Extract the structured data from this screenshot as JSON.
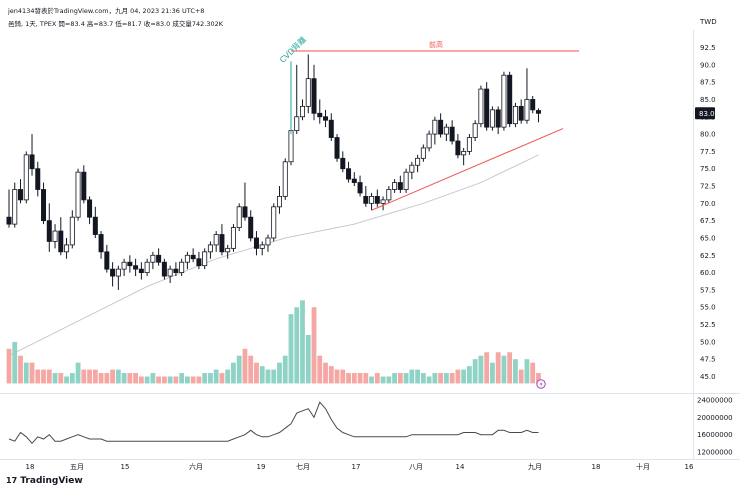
{
  "header": {
    "published": "jen4134發表於TradingView.com，九月 04, 2023 21:36 UTC+8",
    "ohlc": "邑錡, 1天, TPEX  開=83.4  高=83.7  低=81.7  收=83.0  成交量742.302K",
    "currency": "TWD"
  },
  "annotations": {
    "pattern_label": "CVD背離",
    "prev_high_label": "前高"
  },
  "last_price_label": "83.0",
  "footer": {
    "brand": "TradingView"
  },
  "chart_data": {
    "type": "candlestick",
    "price_axis": {
      "ticks": [
        "92.5",
        "90.0",
        "87.5",
        "85.0",
        "82.5",
        "80.0",
        "77.5",
        "75.0",
        "72.5",
        "70.0",
        "67.5",
        "65.0",
        "62.5",
        "60.0",
        "57.5",
        "55.0",
        "52.5",
        "50.0",
        "47.5",
        "45.0"
      ]
    },
    "cvd_axis": {
      "ticks": [
        "24000000",
        "20000000",
        "16000000",
        "12000000"
      ]
    },
    "time_axis": {
      "ticks": [
        "18",
        "五月",
        "15",
        "六月",
        "19",
        "七月",
        "17",
        "八月",
        "14",
        "九月",
        "18",
        "十月",
        "16"
      ]
    },
    "prev_high_level": 92,
    "candles": [
      {
        "o": 68.0,
        "h": 72.0,
        "l": 66.5,
        "c": 67.0
      },
      {
        "o": 67.0,
        "h": 73.0,
        "l": 66.5,
        "c": 72.0
      },
      {
        "o": 72.0,
        "h": 73.5,
        "l": 70.0,
        "c": 70.5
      },
      {
        "o": 70.5,
        "h": 77.5,
        "l": 70.0,
        "c": 77.0
      },
      {
        "o": 77.0,
        "h": 80.0,
        "l": 74.0,
        "c": 75.0
      },
      {
        "o": 75.0,
        "h": 76.0,
        "l": 71.0,
        "c": 72.0
      },
      {
        "o": 72.0,
        "h": 73.0,
        "l": 67.0,
        "c": 67.5
      },
      {
        "o": 67.5,
        "h": 70.0,
        "l": 63.0,
        "c": 64.5
      },
      {
        "o": 64.5,
        "h": 67.0,
        "l": 63.5,
        "c": 66.0
      },
      {
        "o": 66.0,
        "h": 68.0,
        "l": 62.5,
        "c": 63.0
      },
      {
        "o": 63.0,
        "h": 65.0,
        "l": 62.0,
        "c": 64.0
      },
      {
        "o": 64.0,
        "h": 69.0,
        "l": 63.5,
        "c": 68.0
      },
      {
        "o": 68.0,
        "h": 75.0,
        "l": 67.5,
        "c": 74.5
      },
      {
        "o": 74.5,
        "h": 75.5,
        "l": 70.0,
        "c": 70.5
      },
      {
        "o": 70.5,
        "h": 71.0,
        "l": 67.0,
        "c": 68.0
      },
      {
        "o": 68.0,
        "h": 69.5,
        "l": 65.0,
        "c": 65.5
      },
      {
        "o": 65.5,
        "h": 66.0,
        "l": 62.0,
        "c": 63.0
      },
      {
        "o": 63.0,
        "h": 64.0,
        "l": 60.0,
        "c": 60.5
      },
      {
        "o": 60.5,
        "h": 61.5,
        "l": 58.0,
        "c": 59.5
      },
      {
        "o": 59.5,
        "h": 61.0,
        "l": 57.5,
        "c": 60.5
      },
      {
        "o": 60.5,
        "h": 62.0,
        "l": 59.5,
        "c": 61.5
      },
      {
        "o": 61.5,
        "h": 62.5,
        "l": 60.0,
        "c": 61.0
      },
      {
        "o": 61.0,
        "h": 62.0,
        "l": 59.5,
        "c": 60.5
      },
      {
        "o": 60.5,
        "h": 61.5,
        "l": 59.0,
        "c": 60.0
      },
      {
        "o": 60.0,
        "h": 62.0,
        "l": 59.5,
        "c": 61.5
      },
      {
        "o": 61.5,
        "h": 63.0,
        "l": 60.5,
        "c": 62.5
      },
      {
        "o": 62.5,
        "h": 63.5,
        "l": 61.0,
        "c": 61.5
      },
      {
        "o": 61.5,
        "h": 62.0,
        "l": 59.0,
        "c": 59.5
      },
      {
        "o": 59.5,
        "h": 61.0,
        "l": 58.5,
        "c": 60.5
      },
      {
        "o": 60.5,
        "h": 61.5,
        "l": 59.5,
        "c": 60.0
      },
      {
        "o": 60.0,
        "h": 62.0,
        "l": 59.5,
        "c": 61.5
      },
      {
        "o": 61.5,
        "h": 63.0,
        "l": 60.5,
        "c": 62.5
      },
      {
        "o": 62.5,
        "h": 63.5,
        "l": 61.5,
        "c": 62.0
      },
      {
        "o": 62.0,
        "h": 63.0,
        "l": 60.5,
        "c": 61.0
      },
      {
        "o": 61.0,
        "h": 63.5,
        "l": 60.5,
        "c": 63.0
      },
      {
        "o": 63.0,
        "h": 64.5,
        "l": 62.0,
        "c": 64.0
      },
      {
        "o": 64.0,
        "h": 66.0,
        "l": 63.0,
        "c": 65.5
      },
      {
        "o": 65.5,
        "h": 67.0,
        "l": 62.5,
        "c": 63.0
      },
      {
        "o": 63.0,
        "h": 64.0,
        "l": 62.0,
        "c": 63.5
      },
      {
        "o": 63.5,
        "h": 67.0,
        "l": 63.0,
        "c": 66.5
      },
      {
        "o": 66.5,
        "h": 70.0,
        "l": 66.0,
        "c": 69.5
      },
      {
        "o": 69.5,
        "h": 73.0,
        "l": 67.5,
        "c": 68.0
      },
      {
        "o": 68.0,
        "h": 69.0,
        "l": 64.5,
        "c": 65.0
      },
      {
        "o": 65.0,
        "h": 66.0,
        "l": 62.5,
        "c": 63.5
      },
      {
        "o": 63.5,
        "h": 64.5,
        "l": 62.5,
        "c": 64.0
      },
      {
        "o": 64.0,
        "h": 65.5,
        "l": 63.0,
        "c": 65.0
      },
      {
        "o": 65.0,
        "h": 70.0,
        "l": 64.5,
        "c": 69.5
      },
      {
        "o": 69.5,
        "h": 72.5,
        "l": 68.5,
        "c": 71.0
      },
      {
        "o": 71.0,
        "h": 76.5,
        "l": 70.5,
        "c": 76.0
      },
      {
        "o": 76.0,
        "h": 81.0,
        "l": 75.5,
        "c": 80.5
      },
      {
        "o": 80.5,
        "h": 90.0,
        "l": 80.0,
        "c": 82.5
      },
      {
        "o": 82.5,
        "h": 85.0,
        "l": 82.0,
        "c": 84.0
      },
      {
        "o": 84.0,
        "h": 91.5,
        "l": 83.0,
        "c": 88.0
      },
      {
        "o": 88.0,
        "h": 90.0,
        "l": 82.0,
        "c": 83.0
      },
      {
        "o": 83.0,
        "h": 85.0,
        "l": 81.5,
        "c": 82.5
      },
      {
        "o": 82.5,
        "h": 83.5,
        "l": 81.0,
        "c": 82.0
      },
      {
        "o": 82.0,
        "h": 83.0,
        "l": 79.0,
        "c": 79.5
      },
      {
        "o": 79.5,
        "h": 80.0,
        "l": 76.0,
        "c": 76.5
      },
      {
        "o": 76.5,
        "h": 77.5,
        "l": 74.5,
        "c": 75.0
      },
      {
        "o": 75.0,
        "h": 76.0,
        "l": 73.0,
        "c": 73.5
      },
      {
        "o": 73.5,
        "h": 74.5,
        "l": 72.5,
        "c": 73.0
      },
      {
        "o": 73.0,
        "h": 74.0,
        "l": 71.0,
        "c": 71.5
      },
      {
        "o": 71.0,
        "h": 72.5,
        "l": 69.5,
        "c": 70.0
      },
      {
        "o": 70.0,
        "h": 71.5,
        "l": 69.0,
        "c": 71.0
      },
      {
        "o": 71.0,
        "h": 72.0,
        "l": 69.5,
        "c": 70.0
      },
      {
        "o": 70.0,
        "h": 71.0,
        "l": 69.0,
        "c": 70.5
      },
      {
        "o": 70.5,
        "h": 72.5,
        "l": 70.0,
        "c": 72.0
      },
      {
        "o": 72.0,
        "h": 73.5,
        "l": 71.5,
        "c": 73.0
      },
      {
        "o": 73.0,
        "h": 74.0,
        "l": 71.5,
        "c": 72.0
      },
      {
        "o": 72.0,
        "h": 75.0,
        "l": 71.5,
        "c": 74.5
      },
      {
        "o": 74.5,
        "h": 76.0,
        "l": 73.5,
        "c": 75.5
      },
      {
        "o": 75.5,
        "h": 77.0,
        "l": 74.5,
        "c": 76.5
      },
      {
        "o": 76.5,
        "h": 78.5,
        "l": 76.0,
        "c": 78.0
      },
      {
        "o": 78.0,
        "h": 80.5,
        "l": 77.5,
        "c": 80.0
      },
      {
        "o": 80.0,
        "h": 82.5,
        "l": 78.5,
        "c": 82.0
      },
      {
        "o": 82.0,
        "h": 83.0,
        "l": 79.5,
        "c": 80.0
      },
      {
        "o": 80.0,
        "h": 81.5,
        "l": 79.0,
        "c": 81.0
      },
      {
        "o": 81.0,
        "h": 82.0,
        "l": 78.5,
        "c": 79.0
      },
      {
        "o": 79.0,
        "h": 80.0,
        "l": 76.5,
        "c": 77.0
      },
      {
        "o": 77.0,
        "h": 78.0,
        "l": 75.5,
        "c": 77.5
      },
      {
        "o": 77.5,
        "h": 80.0,
        "l": 77.0,
        "c": 79.5
      },
      {
        "o": 79.5,
        "h": 82.0,
        "l": 79.0,
        "c": 81.5
      },
      {
        "o": 81.5,
        "h": 87.0,
        "l": 81.0,
        "c": 86.5
      },
      {
        "o": 86.5,
        "h": 87.5,
        "l": 80.5,
        "c": 81.0
      },
      {
        "o": 81.0,
        "h": 84.0,
        "l": 80.5,
        "c": 83.5
      },
      {
        "o": 83.5,
        "h": 84.0,
        "l": 80.0,
        "c": 81.0
      },
      {
        "o": 81.0,
        "h": 89.0,
        "l": 80.5,
        "c": 88.5
      },
      {
        "o": 88.5,
        "h": 89.0,
        "l": 81.0,
        "c": 81.5
      },
      {
        "o": 81.5,
        "h": 84.5,
        "l": 81.0,
        "c": 84.0
      },
      {
        "o": 84.0,
        "h": 85.0,
        "l": 81.5,
        "c": 82.0
      },
      {
        "o": 82.0,
        "h": 89.5,
        "l": 81.5,
        "c": 85.0
      },
      {
        "o": 85.0,
        "h": 85.5,
        "l": 83.0,
        "c": 83.5
      },
      {
        "o": 83.4,
        "h": 83.7,
        "l": 81.7,
        "c": 83.0
      }
    ],
    "moving_average": [
      {
        "i": 0,
        "v": 48
      },
      {
        "i": 12,
        "v": 53
      },
      {
        "i": 24,
        "v": 58
      },
      {
        "i": 36,
        "v": 62
      },
      {
        "i": 48,
        "v": 65
      },
      {
        "i": 60,
        "v": 67
      },
      {
        "i": 72,
        "v": 70
      },
      {
        "i": 82,
        "v": 73
      },
      {
        "i": 92,
        "v": 77
      }
    ],
    "volume_scale": [
      44.0,
      57.5
    ],
    "volumes": [
      49,
      50,
      48,
      47,
      47,
      46,
      46,
      46,
      45.5,
      45.5,
      45,
      45.5,
      47,
      46,
      46,
      46,
      45.5,
      45.5,
      46,
      46,
      45.5,
      45.5,
      45.5,
      45,
      45,
      45.5,
      45,
      45,
      45,
      45,
      45.5,
      45,
      45,
      45,
      45.5,
      45.5,
      46,
      45.5,
      46,
      47,
      48,
      49,
      48,
      47,
      46.5,
      46,
      46,
      47,
      48,
      54,
      55,
      56,
      51,
      55,
      48,
      47,
      46.5,
      46,
      46,
      45.5,
      45.5,
      45.5,
      45.5,
      45,
      45.5,
      45,
      45,
      45.5,
      45.5,
      45.5,
      46,
      46,
      45.5,
      45,
      45.5,
      45.5,
      45.5,
      45.5,
      46,
      46,
      46.5,
      47.5,
      48,
      48.5,
      47,
      48.5,
      48,
      48.5,
      47.5,
      46,
      47.5,
      47,
      45.5
    ],
    "cvd": [
      15000000,
      14500000,
      16500000,
      15500000,
      14000000,
      15500000,
      15000000,
      16000000,
      14500000,
      14500000,
      15000000,
      15500000,
      16000000,
      15500000,
      15000000,
      15000000,
      15000000,
      14500000,
      14500000,
      14500000,
      14500000,
      14500000,
      14500000,
      14500000,
      14500000,
      14500000,
      14500000,
      14500000,
      14500000,
      14500000,
      14500000,
      14500000,
      14500000,
      14500000,
      14500000,
      14500000,
      14500000,
      14500000,
      14500000,
      15000000,
      15500000,
      16000000,
      17000000,
      16000000,
      15500000,
      15500000,
      16000000,
      16500000,
      17500000,
      18500000,
      21000000,
      21500000,
      22000000,
      20000000,
      23500000,
      22000000,
      19500000,
      17500000,
      16500000,
      16000000,
      15500000,
      15500000,
      15500000,
      15500000,
      15500000,
      15500000,
      15500000,
      15500000,
      15500000,
      15500000,
      16000000,
      16000000,
      16000000,
      16000000,
      16000000,
      16000000,
      16000000,
      16000000,
      16000000,
      16500000,
      16500000,
      16500000,
      16000000,
      16000000,
      16000000,
      17000000,
      17000000,
      16500000,
      16500000,
      16500000,
      17000000,
      16500000,
      16500000
    ]
  }
}
